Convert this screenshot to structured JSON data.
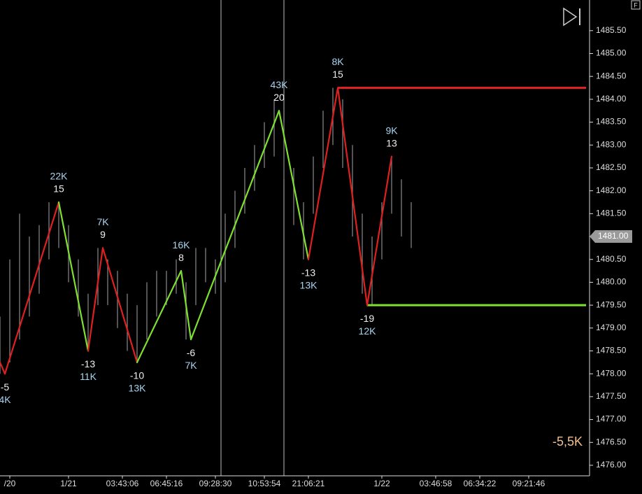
{
  "chart_data": {
    "type": "zigzag",
    "xlim": [
      0,
      120
    ],
    "ylim": [
      1475.77,
      1486.17
    ],
    "xticks": [
      {
        "value": 2,
        "label": "/20"
      },
      {
        "value": 14,
        "label": "1/21"
      },
      {
        "value": 25,
        "label": "03:43:06"
      },
      {
        "value": 34,
        "label": "06:45:16"
      },
      {
        "value": 44,
        "label": "09:28:30"
      },
      {
        "value": 54,
        "label": "10:53:54"
      },
      {
        "value": 63,
        "label": "21:06:21"
      },
      {
        "value": 78,
        "label": "1/22"
      },
      {
        "value": 89,
        "label": "03:46:58"
      },
      {
        "value": 98,
        "label": "06:34:22"
      },
      {
        "value": 108,
        "label": "09:21:46"
      }
    ],
    "yticks": [
      {
        "value": 1476,
        "label": "1476.00"
      },
      {
        "value": 1476.5,
        "label": "1476.50"
      },
      {
        "value": 1477,
        "label": "1477.00"
      },
      {
        "value": 1477.5,
        "label": "1477.50"
      },
      {
        "value": 1478,
        "label": "1478.00"
      },
      {
        "value": 1478.5,
        "label": "1478.50"
      },
      {
        "value": 1479,
        "label": "1479.00"
      },
      {
        "value": 1479.5,
        "label": "1479.50"
      },
      {
        "value": 1480,
        "label": "1480.00"
      },
      {
        "value": 1480.5,
        "label": "1480.50"
      },
      {
        "value": 1481,
        "label": "1481.00"
      },
      {
        "value": 1481.5,
        "label": "1481.50"
      },
      {
        "value": 1482,
        "label": "1482.00"
      },
      {
        "value": 1482.5,
        "label": "1482.50"
      },
      {
        "value": 1483,
        "label": "1483.00"
      },
      {
        "value": 1483.5,
        "label": "1483.50"
      },
      {
        "value": 1484,
        "label": "1484.00"
      },
      {
        "value": 1484.5,
        "label": "1484.50"
      },
      {
        "value": 1485,
        "label": "1485.00"
      },
      {
        "value": 1485.5,
        "label": "1485.50"
      }
    ],
    "bars": {
      "color": "#8a8a8a",
      "x": [
        0,
        2,
        4,
        6,
        8,
        10,
        12,
        14,
        16,
        18,
        20,
        22,
        24,
        26,
        28,
        30,
        32,
        34,
        36,
        38,
        40,
        42,
        44,
        46,
        48,
        50,
        52,
        54,
        56,
        58,
        60,
        62,
        64,
        66,
        68,
        70,
        72,
        74,
        76,
        78,
        80,
        82,
        84
      ],
      "low": [
        1478.0,
        1478.25,
        1478.75,
        1479.25,
        1479.75,
        1480.5,
        1480.75,
        1480.0,
        1479.25,
        1478.5,
        1479.5,
        1479.5,
        1479.0,
        1478.5,
        1478.25,
        1478.75,
        1479.25,
        1479.5,
        1479.75,
        1478.75,
        1479.5,
        1480.0,
        1479.75,
        1480.0,
        1480.75,
        1481.5,
        1482.0,
        1482.5,
        1482.75,
        1482.25,
        1481.25,
        1480.5,
        1481.5,
        1482.5,
        1483.0,
        1482.5,
        1481.0,
        1479.75,
        1479.5,
        1480.5,
        1481.5,
        1481.0,
        1480.75
      ],
      "high": [
        1479.25,
        1480.5,
        1481.5,
        1481.0,
        1481.25,
        1481.75,
        1481.75,
        1481.25,
        1480.5,
        1479.75,
        1480.75,
        1480.5,
        1480.25,
        1479.75,
        1479.5,
        1480.0,
        1480.25,
        1480.25,
        1480.5,
        1480.0,
        1480.75,
        1480.75,
        1480.5,
        1481.5,
        1482.0,
        1482.5,
        1483.0,
        1483.5,
        1484.0,
        1483.5,
        1482.5,
        1481.75,
        1482.75,
        1483.75,
        1484.25,
        1484.0,
        1483.0,
        1481.5,
        1481.0,
        1481.75,
        1482.75,
        1482.25,
        1481.75
      ]
    },
    "pivots": {
      "x": [
        0,
        1,
        12,
        18,
        21,
        28,
        37,
        39,
        57,
        63,
        69,
        75,
        80
      ],
      "y": [
        1478.25,
        1478.0,
        1481.75,
        1478.5,
        1480.75,
        1478.25,
        1480.25,
        1478.75,
        1483.75,
        1480.5,
        1484.25,
        1479.5,
        1482.75
      ],
      "delta": [
        null,
        -5,
        15,
        -13,
        9,
        -10,
        8,
        -6,
        20,
        -13,
        15,
        -19,
        13
      ],
      "volume": [
        null,
        "4K",
        "22K",
        "11K",
        "7K",
        "13K",
        "16K",
        "7K",
        "43K",
        "13K",
        "8K",
        "12K",
        "9K"
      ],
      "segment_colors": [
        "#e02020",
        "#e02020",
        "#7fe030",
        "#e02020",
        "#e02020",
        "#7fe030",
        "#7fe030",
        "#7fe030",
        "#7fe030",
        "#e02020",
        "#e02020",
        "#e02020"
      ]
    },
    "levels": [
      {
        "value": 1484.25,
        "x": 69,
        "color": "#e02020"
      },
      {
        "value": 1479.5,
        "x": 75,
        "color": "#7fe030"
      }
    ],
    "last_price": {
      "value": 1481,
      "label": "1481.00"
    },
    "cumulative_delta": "-5,5K",
    "badge": "F"
  }
}
